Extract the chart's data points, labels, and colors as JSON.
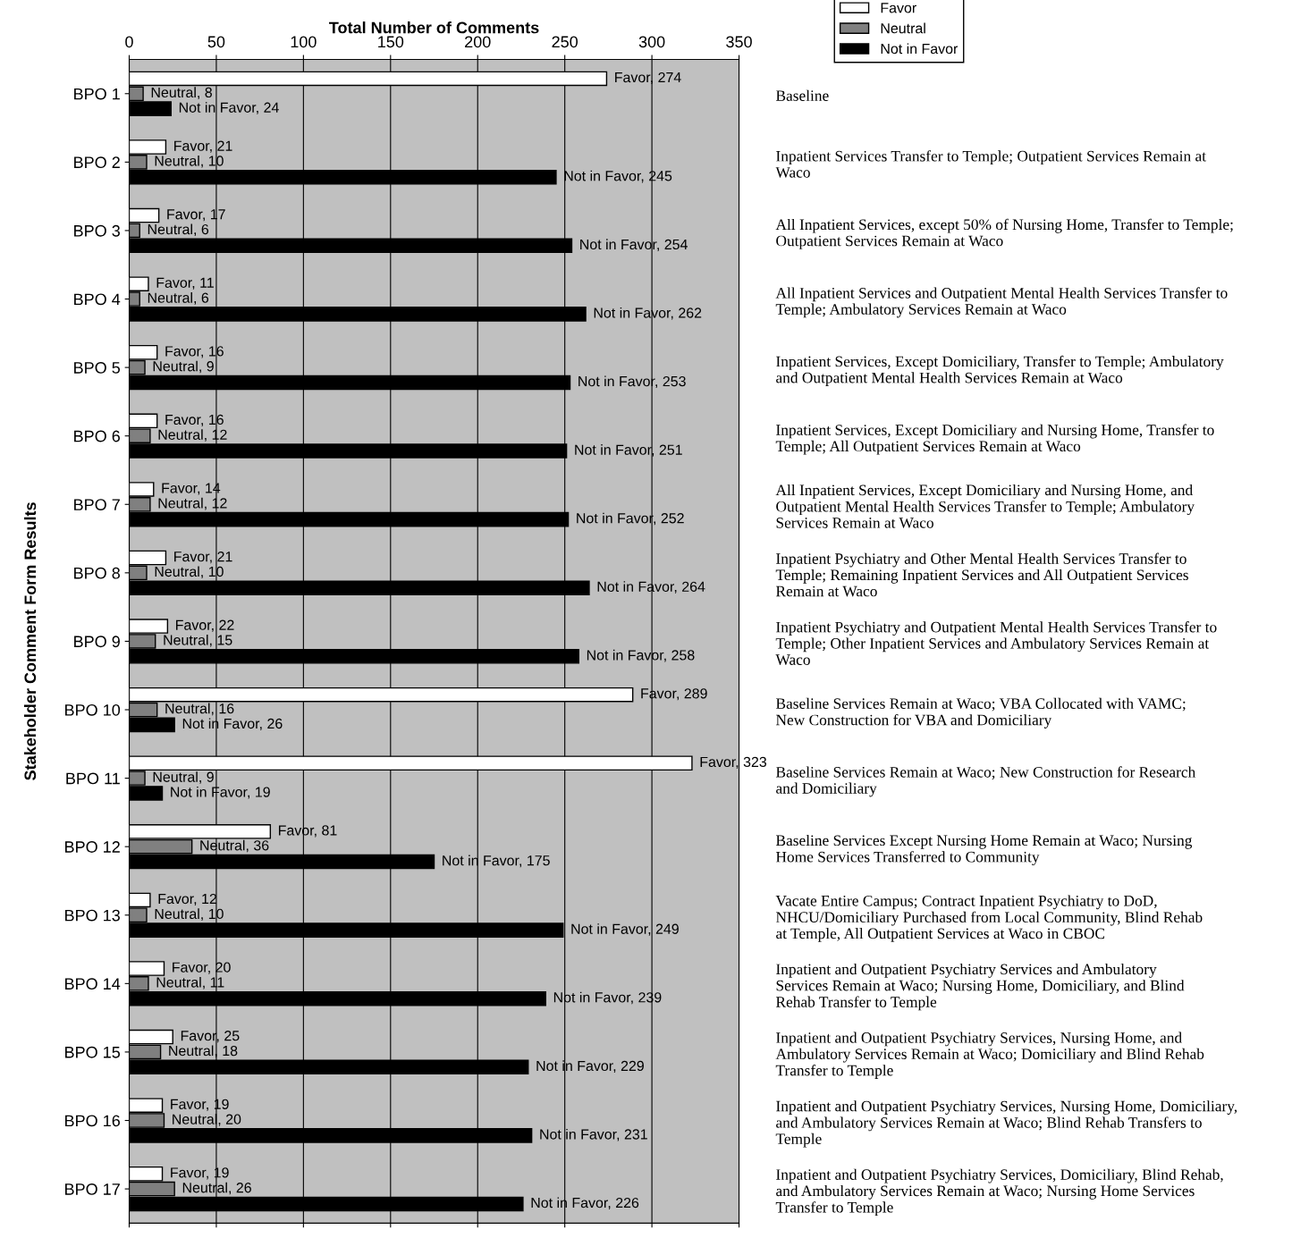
{
  "chart_data": {
    "type": "bar",
    "orientation": "horizontal",
    "xlabel": "Total Number of Comments",
    "ylabel": "Stakeholder Comment Form Results",
    "categories": [
      "BPO 1",
      "BPO 2",
      "BPO 3",
      "BPO 4",
      "BPO 5",
      "BPO 6",
      "BPO 7",
      "BPO 8",
      "BPO 9",
      "BPO 10",
      "BPO 11",
      "BPO 12",
      "BPO 13",
      "BPO 14",
      "BPO 15",
      "BPO 16",
      "BPO 17"
    ],
    "series": [
      {
        "name": "Favor",
        "color": "#ffffff",
        "values": [
          274,
          21,
          17,
          11,
          16,
          16,
          14,
          21,
          22,
          289,
          323,
          81,
          12,
          20,
          25,
          19,
          19
        ],
        "value_labels": [
          "Favor, 274",
          "Favor, 21",
          "Favor, 17",
          "Favor, 11",
          "Favor, 16",
          "Favor, 16",
          "Favor, 14",
          "Favor, 21",
          "Favor, 22",
          "Favor, 289",
          "Favor, 323",
          "Favor, 81",
          "Favor, 12",
          "Favor, 20",
          "Favor, 25",
          "Favor, 19",
          "Favor, 19"
        ]
      },
      {
        "name": "Neutral",
        "color": "#808080",
        "values": [
          8,
          10,
          6,
          6,
          9,
          12,
          12,
          10,
          15,
          16,
          9,
          36,
          10,
          11,
          18,
          20,
          26
        ],
        "value_labels": [
          "Neutral, 8",
          "Neutral, 10",
          "Neutral, 6",
          "Neutral, 6",
          "Neutral, 9",
          "Neutral, 12",
          "Neutral, 12",
          "Neutral, 10",
          "Neutral, 15",
          "Neutral, 16",
          "Neutral, 9",
          "Neutral, 36",
          "Neutral, 10",
          "Neutral, 11",
          "Neutral, 18",
          "Neutral, 20",
          "Neutral, 26"
        ]
      },
      {
        "name": "Not in Favor",
        "color": "#000000",
        "values": [
          24,
          245,
          254,
          262,
          253,
          251,
          252,
          264,
          258,
          26,
          19,
          175,
          249,
          239,
          229,
          231,
          226
        ],
        "value_labels": [
          "Not in Favor, 24",
          "Not in Favor, 245",
          "Not in Favor, 254",
          "Not in Favor, 262",
          "Not in Favor, 253",
          "Not in Favor, 251",
          "Not in Favor, 252",
          "Not in Favor, 264",
          "Not in Favor, 258",
          "Not in Favor, 26",
          "Not in Favor, 19",
          "Not in Favor, 175",
          "Not in Favor, 249",
          "Not in Favor, 239",
          "Not in Favor, 229",
          "Not in Favor, 231",
          "Not in Favor, 226"
        ]
      }
    ],
    "xlim": [
      0,
      350
    ],
    "xticks": [
      0,
      50,
      100,
      150,
      200,
      250,
      300,
      350
    ],
    "grid": "x",
    "legend": "top right",
    "annotations": [
      "Baseline",
      "Inpatient Services Transfer to Temple; Outpatient Services Remain at\nWaco",
      "All Inpatient Services, except 50% of Nursing Home, Transfer to Temple;\nOutpatient Services Remain at Waco",
      "All Inpatient Services and Outpatient Mental Health Services Transfer to\nTemple; Ambulatory Services Remain at Waco",
      "Inpatient Services, Except Domiciliary, Transfer to Temple; Ambulatory\nand Outpatient Mental Health Services Remain at Waco",
      "Inpatient Services, Except Domiciliary and Nursing Home, Transfer to\nTemple; All Outpatient Services Remain at Waco",
      "All Inpatient Services, Except Domiciliary and Nursing Home, and\nOutpatient Mental Health Services Transfer to Temple; Ambulatory\nServices Remain at Waco",
      "Inpatient Psychiatry and Other Mental Health Services Transfer to\nTemple; Remaining Inpatient Services and All Outpatient Services\nRemain at Waco",
      "Inpatient Psychiatry and Outpatient Mental Health Services Transfer to\nTemple; Other Inpatient Services and Ambulatory Services Remain at\nWaco",
      "Baseline Services Remain at Waco; VBA Collocated with VAMC;\nNew Construction for VBA and Domiciliary",
      "Baseline Services Remain at Waco; New Construction for Research\nand Domiciliary",
      "Baseline Services Except Nursing Home Remain at Waco; Nursing\nHome Services Transferred to Community",
      "Vacate Entire Campus; Contract Inpatient Psychiatry to DoD,\nNHCU/Domiciliary Purchased from Local Community, Blind Rehab\nat Temple, All Outpatient Services at Waco in CBOC",
      "Inpatient and Outpatient Psychiatry Services and Ambulatory\nServices Remain at Waco; Nursing Home, Domiciliary, and Blind\nRehab Transfer to Temple",
      "Inpatient and Outpatient Psychiatry Services, Nursing Home, and\nAmbulatory Services Remain at Waco; Domiciliary and Blind Rehab\nTransfer to Temple",
      "Inpatient and Outpatient Psychiatry Services, Nursing Home, Domiciliary,\nand Ambulatory Services Remain at Waco; Blind Rehab Transfers to\nTemple",
      "Inpatient and Outpatient Psychiatry Services, Domiciliary, Blind Rehab,\nand Ambulatory Services Remain at Waco; Nursing Home Services\nTransfer to Temple"
    ]
  }
}
